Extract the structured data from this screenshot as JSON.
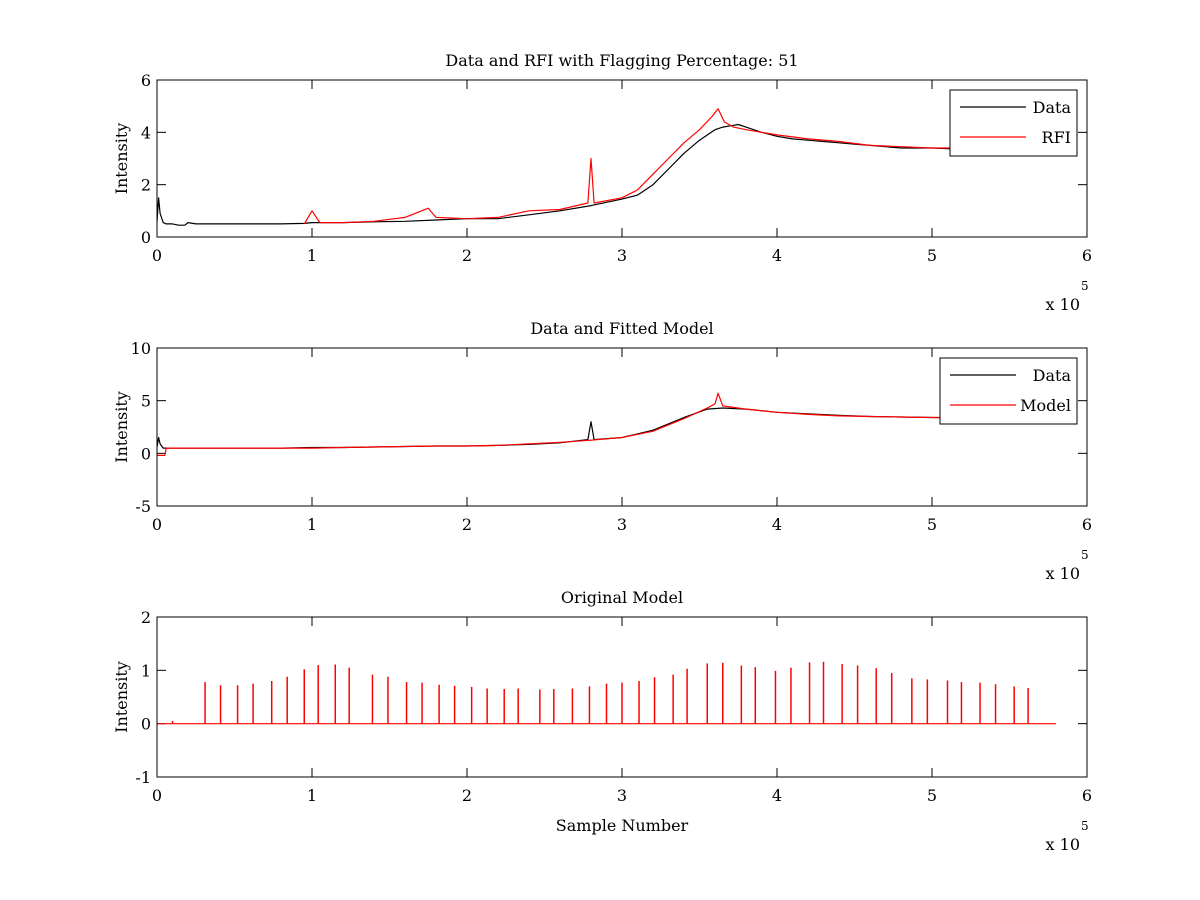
{
  "figure": {
    "background": "#ffffff"
  },
  "chart_data": [
    {
      "type": "line",
      "title": "Data and RFI with Flagging Percentage: 51",
      "xlabel": "",
      "ylabel": "Intensity",
      "xlim": [
        0,
        6
      ],
      "ylim": [
        0,
        6
      ],
      "xticks": [
        "0",
        "1",
        "2",
        "3",
        "4",
        "5",
        "6"
      ],
      "yticks": [
        "0",
        "2",
        "4",
        "6"
      ],
      "x_multiplier": {
        "base": "x 10",
        "exponent": "5"
      },
      "legend": {
        "placement": "top-right"
      },
      "grid": false,
      "series": [
        {
          "name": "Data",
          "color": "#000000",
          "x": [
            0.0,
            0.01,
            0.02,
            0.04,
            0.06,
            0.1,
            0.14,
            0.18,
            0.2,
            0.25,
            0.4,
            0.6,
            0.8,
            0.95,
            1.0,
            1.2,
            1.4,
            1.6,
            1.8,
            2.0,
            2.2,
            2.4,
            2.6,
            2.8,
            3.0,
            3.1,
            3.2,
            3.3,
            3.4,
            3.5,
            3.6,
            3.65,
            3.7,
            3.75,
            3.8,
            3.9,
            4.0,
            4.1,
            4.2,
            4.3,
            4.4,
            4.5,
            4.6,
            4.7,
            4.8,
            4.9,
            5.0,
            5.1,
            5.2,
            5.3,
            5.4,
            5.5,
            5.6,
            5.7
          ],
          "y": [
            0.6,
            1.5,
            0.9,
            0.55,
            0.5,
            0.5,
            0.45,
            0.45,
            0.55,
            0.5,
            0.5,
            0.5,
            0.5,
            0.52,
            0.55,
            0.55,
            0.58,
            0.6,
            0.65,
            0.7,
            0.7,
            0.85,
            1.0,
            1.2,
            1.45,
            1.6,
            2.0,
            2.6,
            3.2,
            3.7,
            4.1,
            4.2,
            4.25,
            4.3,
            4.2,
            4.0,
            3.85,
            3.75,
            3.7,
            3.65,
            3.6,
            3.55,
            3.5,
            3.45,
            3.4,
            3.4,
            3.4,
            3.38,
            3.35,
            3.35,
            3.35,
            3.35,
            3.35,
            3.35
          ]
        },
        {
          "name": "RFI",
          "color": "#ff0000",
          "x": [
            0.95,
            1.0,
            1.05,
            1.2,
            1.4,
            1.6,
            1.75,
            1.8,
            2.0,
            2.2,
            2.4,
            2.6,
            2.78,
            2.8,
            2.82,
            3.0,
            3.1,
            3.2,
            3.3,
            3.4,
            3.5,
            3.58,
            3.62,
            3.66,
            3.72,
            3.8,
            4.0,
            4.2,
            4.4,
            4.6,
            4.8,
            5.0,
            5.2,
            5.4,
            5.6
          ],
          "y": [
            0.5,
            1.0,
            0.55,
            0.55,
            0.6,
            0.75,
            1.1,
            0.75,
            0.7,
            0.75,
            1.0,
            1.05,
            1.3,
            3.0,
            1.3,
            1.5,
            1.8,
            2.4,
            3.0,
            3.6,
            4.1,
            4.6,
            4.9,
            4.4,
            4.2,
            4.1,
            3.9,
            3.75,
            3.65,
            3.5,
            3.45,
            3.4,
            3.4,
            3.38,
            3.4
          ]
        }
      ]
    },
    {
      "type": "line",
      "title": "Data and Fitted Model",
      "xlabel": "",
      "ylabel": "Intensity",
      "xlim": [
        0,
        6
      ],
      "ylim": [
        -5,
        10
      ],
      "xticks": [
        "0",
        "1",
        "2",
        "3",
        "4",
        "5",
        "6"
      ],
      "yticks": [
        "-5",
        "0",
        "5",
        "10"
      ],
      "x_multiplier": {
        "base": "x 10",
        "exponent": "5"
      },
      "legend": {
        "placement": "top-right"
      },
      "grid": false,
      "series": [
        {
          "name": "Data",
          "color": "#000000",
          "x": [
            0.0,
            0.01,
            0.02,
            0.04,
            0.06,
            0.1,
            0.2,
            0.4,
            0.6,
            0.8,
            1.0,
            1.2,
            1.4,
            1.6,
            1.8,
            2.0,
            2.2,
            2.4,
            2.6,
            2.78,
            2.8,
            2.82,
            3.0,
            3.2,
            3.4,
            3.55,
            3.65,
            3.8,
            4.0,
            4.2,
            4.4,
            4.6,
            4.8,
            5.0,
            5.2,
            5.4,
            5.6,
            5.7
          ],
          "y": [
            0.6,
            1.5,
            0.9,
            0.5,
            0.5,
            0.5,
            0.5,
            0.5,
            0.5,
            0.5,
            0.55,
            0.55,
            0.6,
            0.65,
            0.7,
            0.7,
            0.75,
            0.85,
            1.0,
            1.3,
            3.0,
            1.3,
            1.5,
            2.2,
            3.4,
            4.2,
            4.3,
            4.2,
            3.9,
            3.75,
            3.6,
            3.5,
            3.45,
            3.4,
            3.38,
            3.35,
            3.35,
            3.35
          ]
        },
        {
          "name": "Model",
          "color": "#ff0000",
          "x": [
            0.0,
            0.05,
            0.06,
            0.1,
            0.2,
            0.4,
            0.6,
            0.8,
            1.0,
            1.2,
            1.4,
            1.6,
            1.8,
            2.0,
            2.2,
            2.4,
            2.6,
            2.8,
            3.0,
            3.2,
            3.4,
            3.55,
            3.6,
            3.62,
            3.65,
            3.8,
            4.0,
            4.2,
            4.4,
            4.6,
            4.8,
            5.0,
            5.2,
            5.4,
            5.6,
            5.7
          ],
          "y": [
            -0.2,
            -0.2,
            0.5,
            0.5,
            0.5,
            0.5,
            0.5,
            0.5,
            0.5,
            0.55,
            0.6,
            0.65,
            0.7,
            0.7,
            0.75,
            0.9,
            1.05,
            1.25,
            1.5,
            2.1,
            3.3,
            4.3,
            4.7,
            5.7,
            4.5,
            4.2,
            3.9,
            3.7,
            3.55,
            3.5,
            3.45,
            3.4,
            3.38,
            3.35,
            3.35,
            3.35
          ]
        }
      ]
    },
    {
      "type": "line",
      "title": "Original Model",
      "xlabel": "Sample Number",
      "ylabel": "Intensity",
      "xlim": [
        0,
        6
      ],
      "ylim": [
        -1,
        2
      ],
      "xticks": [
        "0",
        "1",
        "2",
        "3",
        "4",
        "5",
        "6"
      ],
      "yticks": [
        "-1",
        "0",
        "1",
        "2"
      ],
      "x_multiplier": {
        "base": "x 10",
        "exponent": "5"
      },
      "legend": null,
      "grid": false,
      "baseline": {
        "value": 0,
        "x_start": 0,
        "x_end": 5.8
      },
      "series": [
        {
          "color": "#ff0000",
          "spikes_x": [
            0.1,
            0.31,
            0.41,
            0.52,
            0.62,
            0.74,
            0.84,
            0.95,
            1.04,
            1.15,
            1.24,
            1.39,
            1.49,
            1.61,
            1.71,
            1.82,
            1.92,
            2.03,
            2.13,
            2.24,
            2.33,
            2.47,
            2.56,
            2.68,
            2.79,
            2.9,
            3.0,
            3.11,
            3.21,
            3.33,
            3.42,
            3.55,
            3.65,
            3.77,
            3.86,
            3.99,
            4.09,
            4.21,
            4.3,
            4.42,
            4.52,
            4.64,
            4.74,
            4.87,
            4.97,
            5.1,
            5.19,
            5.31,
            5.41,
            5.53,
            5.62
          ],
          "spikes_y": [
            0.05,
            0.78,
            0.72,
            0.72,
            0.75,
            0.8,
            0.88,
            1.02,
            1.1,
            1.11,
            1.05,
            0.92,
            0.88,
            0.78,
            0.77,
            0.73,
            0.71,
            0.69,
            0.66,
            0.65,
            0.66,
            0.64,
            0.65,
            0.66,
            0.7,
            0.75,
            0.77,
            0.8,
            0.87,
            0.92,
            1.03,
            1.13,
            1.14,
            1.09,
            1.06,
            0.99,
            1.05,
            1.15,
            1.16,
            1.12,
            1.09,
            1.04,
            0.95,
            0.85,
            0.83,
            0.81,
            0.78,
            0.77,
            0.74,
            0.7,
            0.67
          ]
        }
      ]
    }
  ]
}
